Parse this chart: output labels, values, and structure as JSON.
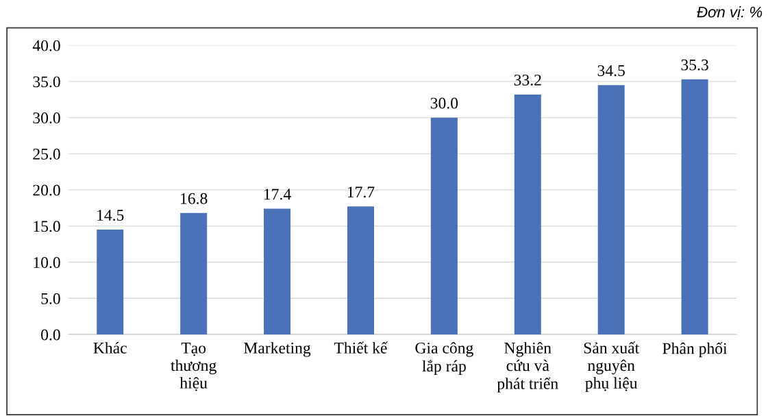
{
  "chart_data": {
    "type": "bar",
    "categories": [
      "Khác",
      "Tạo\nthương\nhiệu",
      "Marketing",
      "Thiết kế",
      "Gia công\nlắp ráp",
      "Nghiên\ncứu và\nphát triển",
      "Sản xuất\nnguyên\nphụ liệu",
      "Phân phối"
    ],
    "values": [
      14.5,
      16.8,
      17.4,
      17.7,
      30.0,
      33.2,
      34.5,
      35.3
    ],
    "value_labels": [
      "14.5",
      "16.8",
      "17.4",
      "17.7",
      "30.0",
      "33.2",
      "34.5",
      "35.3"
    ],
    "color": "#4a70b8",
    "ylim": [
      0,
      40
    ],
    "yticks": [
      {
        "value": 0,
        "label": "0.0"
      },
      {
        "value": 5,
        "label": "5.0"
      },
      {
        "value": 10,
        "label": "10.0"
      },
      {
        "value": 15,
        "label": "15.0"
      },
      {
        "value": 20,
        "label": "20.0"
      },
      {
        "value": 25,
        "label": "25.0"
      },
      {
        "value": 30,
        "label": "30.0"
      },
      {
        "value": 35,
        "label": "35.0"
      },
      {
        "value": 40,
        "label": "40.0"
      }
    ],
    "grid": "y",
    "annotations": [
      "Đơn vị: %"
    ]
  }
}
